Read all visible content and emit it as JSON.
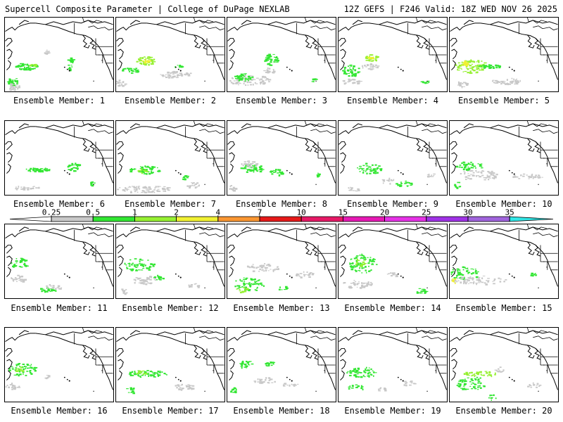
{
  "header": {
    "left": "Supercell Composite Parameter | College of DuPage NEXLAB",
    "right": "12Z GEFS | F246 Valid: 18Z WED NOV 26 2025"
  },
  "panels": [
    {
      "label": "Ensemble Member: 1"
    },
    {
      "label": "Ensemble Member: 2"
    },
    {
      "label": "Ensemble Member: 3"
    },
    {
      "label": "Ensemble Member: 4"
    },
    {
      "label": "Ensemble Member: 5"
    },
    {
      "label": "Ensemble Member: 6"
    },
    {
      "label": "Ensemble Member: 7"
    },
    {
      "label": "Ensemble Member: 8"
    },
    {
      "label": "Ensemble Member: 9"
    },
    {
      "label": "Ensemble Member: 10"
    },
    {
      "label": "Ensemble Member: 11"
    },
    {
      "label": "Ensemble Member: 12"
    },
    {
      "label": "Ensemble Member: 13"
    },
    {
      "label": "Ensemble Member: 14"
    },
    {
      "label": "Ensemble Member: 15"
    },
    {
      "label": "Ensemble Member: 16"
    },
    {
      "label": "Ensemble Member: 17"
    },
    {
      "label": "Ensemble Member: 18"
    },
    {
      "label": "Ensemble Member: 19"
    },
    {
      "label": "Ensemble Member: 20"
    }
  ],
  "legend": {
    "ticks": [
      "0.25",
      "0.5",
      "1",
      "2",
      "4",
      "7",
      "10",
      "15",
      "20",
      "25",
      "30",
      "35"
    ],
    "colors": [
      "#c8c8c8",
      "#32e632",
      "#96f032",
      "#f0f032",
      "#fa9632",
      "#e61919",
      "#e61966",
      "#e619b4",
      "#e632e6",
      "#a032e6",
      "#a064dc",
      "#32e6e6"
    ]
  }
}
